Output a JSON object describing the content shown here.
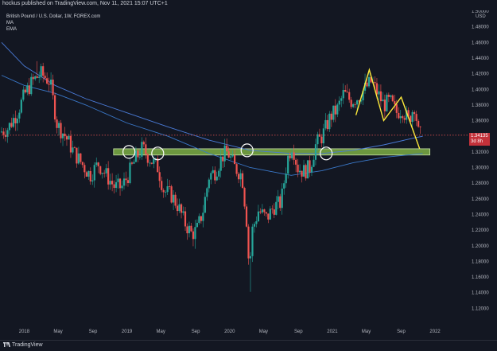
{
  "header": {
    "publish_text": "hockus published on TradingView.com, Nov 11, 2021 15:07 UTC+1"
  },
  "legend": {
    "symbol_line": "British Pound / U.S. Dollar, 1W, FOREX.com",
    "indicator_1": "MA",
    "indicator_2": "EMA"
  },
  "price_tag": {
    "value": "1.34135",
    "countdown": "3d 8h"
  },
  "footer": {
    "brand": "TradingView"
  },
  "colors": {
    "background": "#131722",
    "up_candle": "#26a69a",
    "down_candle": "#ef5350",
    "support_zone": "#8bc34a",
    "ma_line": "#4a7bd8",
    "ema_line": "#3a78c9",
    "pattern_line": "#ffeb3b",
    "price_line": "#ef5350"
  },
  "chart_data": {
    "type": "candlestick",
    "y_axis": {
      "label": "USD",
      "range": [
        1.1,
        1.5
      ],
      "ticks": [
        "1.50000",
        "1.48000",
        "1.46000",
        "1.44000",
        "1.42000",
        "1.40000",
        "1.38000",
        "1.36000",
        "1.34000",
        "1.32000",
        "1.30000",
        "1.28000",
        "1.26000",
        "1.24000",
        "1.22000",
        "1.20000",
        "1.18000",
        "1.16000",
        "1.14000",
        "1.12000"
      ]
    },
    "x_axis": {
      "ticks": [
        "2018",
        "May",
        "Sep",
        "2019",
        "May",
        "Sep",
        "2020",
        "May",
        "Sep",
        "2021",
        "May",
        "Sep",
        "2022"
      ],
      "range": [
        2017.78,
        2022.1
      ]
    },
    "current_price": 1.34135,
    "support_zone": {
      "low": 1.316,
      "high": 1.324,
      "from": 2018.87,
      "to": 2021.95
    },
    "touch_circles": [
      {
        "date": 2019.02,
        "price": 1.32
      },
      {
        "date": 2019.3,
        "price": 1.318
      },
      {
        "date": 2020.17,
        "price": 1.322
      },
      {
        "date": 2020.94,
        "price": 1.318
      }
    ],
    "pattern_polyline": [
      [
        2021.23,
        1.367
      ],
      [
        2021.36,
        1.425
      ],
      [
        2021.5,
        1.36
      ],
      [
        2021.67,
        1.39
      ],
      [
        2021.85,
        1.324
      ]
    ],
    "ma_series": [
      [
        2017.78,
        1.46
      ],
      [
        2018.0,
        1.43
      ],
      [
        2018.3,
        1.405
      ],
      [
        2018.6,
        1.388
      ],
      [
        2019.0,
        1.37
      ],
      [
        2019.4,
        1.352
      ],
      [
        2019.8,
        1.335
      ],
      [
        2020.2,
        1.322
      ],
      [
        2020.6,
        1.318
      ],
      [
        2020.9,
        1.318
      ],
      [
        2021.2,
        1.322
      ],
      [
        2021.5,
        1.329
      ],
      [
        2021.8,
        1.338
      ],
      [
        2021.88,
        1.34
      ]
    ],
    "ema_series": [
      [
        2017.78,
        1.418
      ],
      [
        2018.0,
        1.405
      ],
      [
        2018.3,
        1.395
      ],
      [
        2018.6,
        1.38
      ],
      [
        2019.0,
        1.357
      ],
      [
        2019.4,
        1.34
      ],
      [
        2019.8,
        1.318
      ],
      [
        2020.2,
        1.3
      ],
      [
        2020.6,
        1.29
      ],
      [
        2020.9,
        1.296
      ],
      [
        2021.2,
        1.306
      ],
      [
        2021.5,
        1.313
      ],
      [
        2021.88,
        1.318
      ]
    ],
    "price_path": [
      [
        2017.78,
        1.345
      ],
      [
        2017.86,
        1.35
      ],
      [
        2017.95,
        1.37
      ],
      [
        2018.03,
        1.395
      ],
      [
        2018.1,
        1.41
      ],
      [
        2018.18,
        1.42
      ],
      [
        2018.27,
        1.41
      ],
      [
        2018.34,
        1.355
      ],
      [
        2018.42,
        1.34
      ],
      [
        2018.5,
        1.32
      ],
      [
        2018.58,
        1.305
      ],
      [
        2018.66,
        1.29
      ],
      [
        2018.74,
        1.305
      ],
      [
        2018.82,
        1.29
      ],
      [
        2018.9,
        1.275
      ],
      [
        2018.97,
        1.275
      ],
      [
        2019.03,
        1.29
      ],
      [
        2019.1,
        1.31
      ],
      [
        2019.17,
        1.325
      ],
      [
        2019.25,
        1.31
      ],
      [
        2019.32,
        1.3
      ],
      [
        2019.38,
        1.27
      ],
      [
        2019.45,
        1.265
      ],
      [
        2019.52,
        1.25
      ],
      [
        2019.58,
        1.23
      ],
      [
        2019.65,
        1.215
      ],
      [
        2019.7,
        1.22
      ],
      [
        2019.76,
        1.245
      ],
      [
        2019.82,
        1.29
      ],
      [
        2019.88,
        1.295
      ],
      [
        2019.95,
        1.315
      ],
      [
        2020.0,
        1.32
      ],
      [
        2020.07,
        1.3
      ],
      [
        2020.14,
        1.29
      ],
      [
        2020.19,
        1.225
      ],
      [
        2020.21,
        1.165
      ],
      [
        2020.24,
        1.22
      ],
      [
        2020.3,
        1.245
      ],
      [
        2020.38,
        1.235
      ],
      [
        2020.45,
        1.25
      ],
      [
        2020.52,
        1.255
      ],
      [
        2020.58,
        1.31
      ],
      [
        2020.63,
        1.33
      ],
      [
        2020.68,
        1.3
      ],
      [
        2020.74,
        1.295
      ],
      [
        2020.8,
        1.3
      ],
      [
        2020.86,
        1.33
      ],
      [
        2020.92,
        1.34
      ],
      [
        2021.0,
        1.365
      ],
      [
        2021.07,
        1.375
      ],
      [
        2021.13,
        1.395
      ],
      [
        2021.2,
        1.385
      ],
      [
        2021.27,
        1.39
      ],
      [
        2021.33,
        1.4
      ],
      [
        2021.4,
        1.41
      ],
      [
        2021.46,
        1.395
      ],
      [
        2021.52,
        1.38
      ],
      [
        2021.58,
        1.385
      ],
      [
        2021.64,
        1.37
      ],
      [
        2021.7,
        1.375
      ],
      [
        2021.76,
        1.36
      ],
      [
        2021.82,
        1.38
      ],
      [
        2021.86,
        1.341
      ]
    ],
    "extremes": [
      {
        "date": 2018.12,
        "price": 1.436
      },
      {
        "date": 2019.67,
        "price": 1.196
      },
      {
        "date": 2020.21,
        "price": 1.141
      },
      {
        "date": 2021.32,
        "price": 1.42
      }
    ]
  }
}
